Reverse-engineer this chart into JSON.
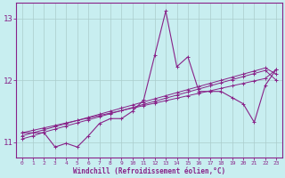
{
  "x": [
    0,
    1,
    2,
    3,
    4,
    5,
    6,
    7,
    8,
    9,
    10,
    11,
    12,
    13,
    14,
    15,
    16,
    17,
    18,
    19,
    20,
    21,
    22,
    23
  ],
  "line_main": [
    11.15,
    11.15,
    11.15,
    10.92,
    10.98,
    10.92,
    11.1,
    11.3,
    11.38,
    11.38,
    11.5,
    11.68,
    12.4,
    13.12,
    12.22,
    12.38,
    11.82,
    11.82,
    11.82,
    11.72,
    11.62,
    11.32,
    11.92,
    12.18
  ],
  "line_a": [
    11.15,
    11.19,
    11.23,
    11.27,
    11.31,
    11.35,
    11.39,
    11.43,
    11.47,
    11.51,
    11.55,
    11.59,
    11.63,
    11.67,
    11.71,
    11.75,
    11.79,
    11.83,
    11.87,
    11.91,
    11.95,
    11.99,
    12.03,
    12.18
  ],
  "line_b": [
    11.1,
    11.15,
    11.2,
    11.25,
    11.3,
    11.35,
    11.4,
    11.45,
    11.5,
    11.55,
    11.6,
    11.65,
    11.7,
    11.75,
    11.8,
    11.85,
    11.9,
    11.95,
    12.0,
    12.05,
    12.1,
    12.15,
    12.2,
    12.1
  ],
  "line_c": [
    11.05,
    11.1,
    11.16,
    11.21,
    11.26,
    11.31,
    11.36,
    11.41,
    11.46,
    11.51,
    11.56,
    11.61,
    11.66,
    11.71,
    11.76,
    11.81,
    11.86,
    11.91,
    11.96,
    12.01,
    12.06,
    12.11,
    12.16,
    12.0
  ],
  "ylim": [
    10.75,
    13.25
  ],
  "xlim": [
    -0.5,
    23.5
  ],
  "yticks": [
    11,
    12,
    13
  ],
  "xticks": [
    0,
    1,
    2,
    3,
    4,
    5,
    6,
    7,
    8,
    9,
    10,
    11,
    12,
    13,
    14,
    15,
    16,
    17,
    18,
    19,
    20,
    21,
    22,
    23
  ],
  "line_color": "#882288",
  "bg_color": "#c8eef0",
  "grid_color": "#aacccc",
  "xlabel": "Windchill (Refroidissement éolien,°C)"
}
